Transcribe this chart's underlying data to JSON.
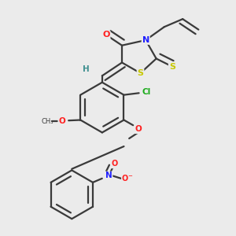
{
  "background_color": "#ebebeb",
  "bond_color": "#3a3a3a",
  "atom_colors": {
    "O": "#ff2020",
    "N": "#2020ff",
    "S": "#c8c800",
    "Cl": "#1aaa1a",
    "C": "#3a3a3a",
    "H": "#409090"
  },
  "lw": 1.6
}
